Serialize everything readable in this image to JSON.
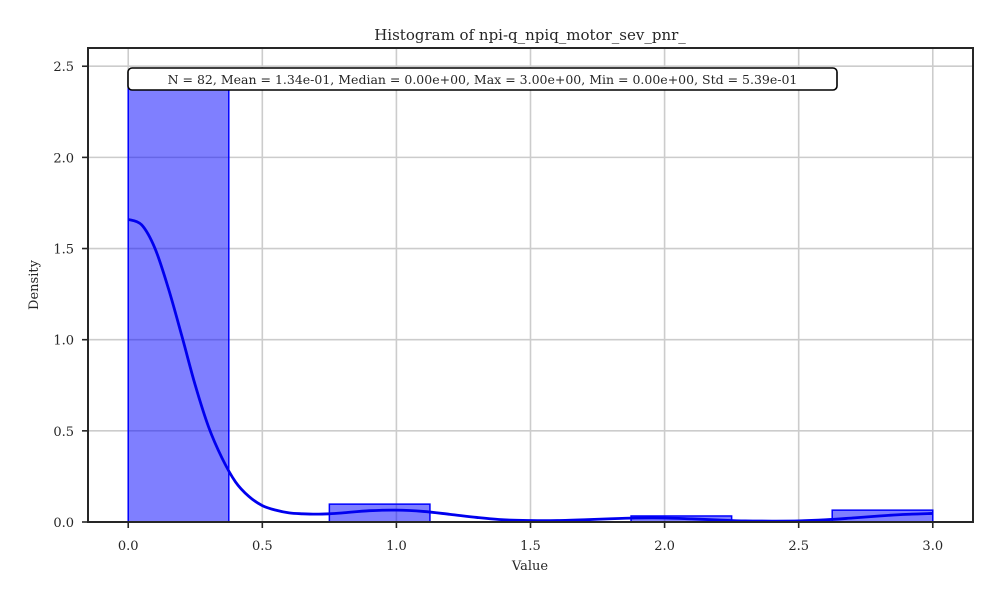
{
  "chart_data": {
    "type": "bar",
    "title": "Histogram of npi-q_npiq_motor_sev_pnr_",
    "xlabel": "Value",
    "ylabel": "Density",
    "xlim": [
      -0.15,
      3.15
    ],
    "ylim": [
      0,
      2.6
    ],
    "xticks": [
      0.0,
      0.5,
      1.0,
      1.5,
      2.0,
      2.5,
      3.0
    ],
    "xtick_labels": [
      "0.0",
      "0.5",
      "1.0",
      "1.5",
      "2.0",
      "2.5",
      "3.0"
    ],
    "yticks": [
      0.0,
      0.5,
      1.0,
      1.5,
      2.0,
      2.5
    ],
    "ytick_labels": [
      "0.0",
      "0.5",
      "1.0",
      "1.5",
      "2.0",
      "2.5"
    ],
    "grid": true,
    "bins": [
      {
        "x0": 0.0,
        "x1": 0.375,
        "density": 2.44
      },
      {
        "x0": 0.375,
        "x1": 0.75,
        "density": 0.0
      },
      {
        "x0": 0.75,
        "x1": 1.125,
        "density": 0.098
      },
      {
        "x0": 1.125,
        "x1": 1.5,
        "density": 0.0
      },
      {
        "x0": 1.5,
        "x1": 1.875,
        "density": 0.0
      },
      {
        "x0": 1.875,
        "x1": 2.25,
        "density": 0.033
      },
      {
        "x0": 2.25,
        "x1": 2.625,
        "density": 0.0
      },
      {
        "x0": 2.625,
        "x1": 3.0,
        "density": 0.065
      }
    ],
    "kde": {
      "x": [
        0.0,
        0.05,
        0.1,
        0.15,
        0.2,
        0.25,
        0.3,
        0.35,
        0.4,
        0.45,
        0.5,
        0.55,
        0.6,
        0.65,
        0.7,
        0.75,
        0.8,
        0.9,
        1.0,
        1.1,
        1.2,
        1.3,
        1.4,
        1.5,
        1.6,
        1.7,
        1.8,
        1.9,
        2.0,
        2.1,
        2.2,
        2.3,
        2.4,
        2.5,
        2.6,
        2.7,
        2.8,
        2.9,
        3.0
      ],
      "y": [
        1.66,
        1.63,
        1.5,
        1.28,
        1.02,
        0.75,
        0.52,
        0.35,
        0.22,
        0.14,
        0.09,
        0.065,
        0.05,
        0.045,
        0.043,
        0.045,
        0.05,
        0.062,
        0.065,
        0.058,
        0.042,
        0.025,
        0.012,
        0.008,
        0.008,
        0.012,
        0.018,
        0.022,
        0.022,
        0.017,
        0.011,
        0.006,
        0.005,
        0.006,
        0.012,
        0.022,
        0.033,
        0.042,
        0.047
      ]
    },
    "bar_color": "#0000ff",
    "bar_fill_opacity": 0.5,
    "kde_color": "#0000ee",
    "annotation": "N = 82, Mean = 1.34e-01, Median = 0.00e+00, Max = 3.00e+00, Min = 0.00e+00, Std = 5.39e-01"
  }
}
